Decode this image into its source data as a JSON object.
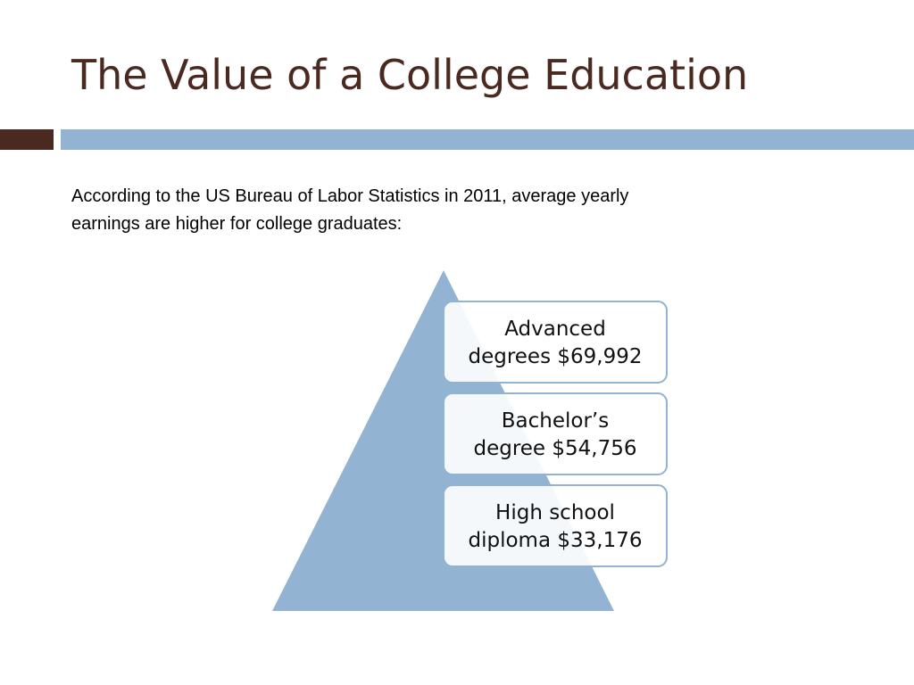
{
  "title": "The Value of a College Education",
  "body": [
    "According to the US Bureau of Labor Statistics in 2011, average yearly",
    "earnings are higher for college graduates:"
  ],
  "pyramid": {
    "items": [
      {
        "lines": [
          "Advanced",
          "degrees $69,992"
        ]
      },
      {
        "lines": [
          "Bachelor’s",
          "degree $54,756"
        ]
      },
      {
        "lines": [
          "High school",
          "diploma $33,176"
        ]
      }
    ]
  }
}
